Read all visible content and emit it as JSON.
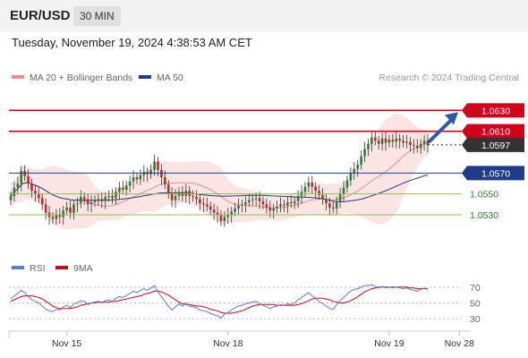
{
  "header": {
    "symbol": "EUR/USD",
    "timeframe": "30 MIN"
  },
  "timestamp": "Tuesday, November 19, 2024 4:38:53 AM CET",
  "legend": {
    "ma20": "MA 20 + Bollinger Bands",
    "ma50": "MA 50",
    "credit": "Research © 2024 Trading Central"
  },
  "rsi_legend": {
    "rsi": "RSI",
    "ma9": "9MA"
  },
  "colors": {
    "red": "#d0021b",
    "blue": "#1f3c88",
    "green": "#8bc34a",
    "bollinger_fill": "#fbe1e1",
    "ma20": "#f08c8c",
    "arrow": "#2e5ca8",
    "candle_up": "#2e7d32",
    "candle_down": "#c62828",
    "current": "#333333"
  },
  "chart_data": [
    {
      "type": "candlestick",
      "xlabel": "",
      "ylabel": "",
      "ylim": [
        1.05,
        1.065
      ],
      "x_ticks": [
        "Nov 15",
        "Nov 18",
        "Nov 19",
        "Nov 28"
      ],
      "x_tick_index": [
        16,
        62,
        108,
        128
      ],
      "close": [
        1.0548,
        1.0556,
        1.056,
        1.0572,
        1.0567,
        1.056,
        1.0553,
        1.055,
        1.0546,
        1.054,
        1.0532,
        1.0528,
        1.0526,
        1.053,
        1.0528,
        1.0534,
        1.0537,
        1.0532,
        1.054,
        1.0541,
        1.0547,
        1.0545,
        1.054,
        1.0542,
        1.0544,
        1.0545,
        1.0543,
        1.0547,
        1.0548,
        1.0546,
        1.0552,
        1.0556,
        1.0554,
        1.0558,
        1.0562,
        1.0566,
        1.0564,
        1.0568,
        1.0571,
        1.0569,
        1.0573,
        1.0581,
        1.0573,
        1.0566,
        1.0559,
        1.0551,
        1.0544,
        1.0548,
        1.0552,
        1.0548,
        1.0553,
        1.0548,
        1.0547,
        1.0545,
        1.0541,
        1.054,
        1.0538,
        1.0535,
        1.0532,
        1.053,
        1.0524,
        1.0528,
        1.053,
        1.0533,
        1.0536,
        1.0539,
        1.054,
        1.0542,
        1.0544,
        1.0545,
        1.0546,
        1.0543,
        1.054,
        1.0537,
        1.0534,
        1.0536,
        1.0538,
        1.054,
        1.0539,
        1.0542,
        1.0541,
        1.0543,
        1.0548,
        1.0552,
        1.0557,
        1.0561,
        1.0557,
        1.0553,
        1.0549,
        1.0545,
        1.0541,
        1.0537,
        1.0536,
        1.0543,
        1.055,
        1.0556,
        1.0563,
        1.057,
        1.0574,
        1.0578,
        1.0586,
        1.0593,
        1.0598,
        1.0604,
        1.0601,
        1.0598,
        1.0603,
        1.0599,
        1.0602,
        1.06,
        1.0603,
        1.0601,
        1.0599,
        1.06,
        1.0597,
        1.0596,
        1.0594,
        1.0598,
        1.0601,
        1.0597
      ],
      "ma20_last": 1.0585,
      "ma50_last": 1.057,
      "current_price": "1.0597",
      "levels": [
        {
          "value": 1.063,
          "label": "1.0630",
          "kind": "resistance"
        },
        {
          "value": 1.061,
          "label": "1.0610",
          "kind": "resistance"
        },
        {
          "value": 1.057,
          "label": "1.0570",
          "kind": "pivot"
        },
        {
          "value": 1.055,
          "label": "1.0550",
          "kind": "support"
        },
        {
          "value": 1.053,
          "label": "1.0530",
          "kind": "support"
        }
      ]
    },
    {
      "type": "line",
      "title": "",
      "ylim": [
        20,
        80
      ],
      "y_ticks": [
        "70",
        "50",
        "30"
      ],
      "series": [
        {
          "name": "RSI",
          "values": [
            55,
            59,
            62,
            66,
            63,
            58,
            54,
            52,
            50,
            46,
            42,
            40,
            39,
            42,
            41,
            45,
            47,
            44,
            49,
            50,
            53,
            52,
            48,
            50,
            51,
            52,
            50,
            53,
            54,
            52,
            56,
            58,
            57,
            59,
            62,
            65,
            63,
            66,
            68,
            66,
            69,
            72,
            64,
            58,
            52,
            46,
            41,
            45,
            49,
            46,
            50,
            46,
            45,
            44,
            41,
            40,
            39,
            37,
            35,
            34,
            31,
            36,
            38,
            41,
            44,
            46,
            47,
            49,
            50,
            51,
            52,
            49,
            47,
            45,
            43,
            45,
            46,
            48,
            47,
            49,
            48,
            50,
            54,
            57,
            60,
            63,
            59,
            56,
            52,
            49,
            46,
            43,
            42,
            48,
            53,
            57,
            61,
            65,
            67,
            68,
            70,
            72,
            72,
            73,
            71,
            69,
            71,
            69,
            70,
            69,
            70,
            69,
            68,
            69,
            67,
            66,
            65,
            67,
            69,
            67
          ]
        },
        {
          "name": "9MA",
          "values": [
            52,
            54,
            56,
            58,
            59,
            59,
            59,
            58,
            57,
            55,
            52,
            49,
            46,
            44,
            43,
            43,
            43,
            43,
            44,
            45,
            47,
            48,
            49,
            50,
            50,
            51,
            51,
            51,
            51,
            52,
            52,
            53,
            54,
            55,
            56,
            57,
            58,
            59,
            61,
            62,
            63,
            65,
            65,
            64,
            62,
            60,
            57,
            54,
            51,
            49,
            48,
            48,
            47,
            46,
            46,
            45,
            44,
            42,
            41,
            40,
            38,
            37,
            37,
            37,
            38,
            39,
            40,
            42,
            44,
            46,
            47,
            48,
            48,
            48,
            48,
            48,
            47,
            47,
            47,
            47,
            47,
            47,
            48,
            49,
            51,
            53,
            55,
            56,
            56,
            56,
            55,
            54,
            52,
            51,
            50,
            50,
            51,
            53,
            55,
            58,
            61,
            64,
            66,
            68,
            69,
            70,
            70,
            70,
            70,
            70,
            70,
            70,
            70,
            70,
            69,
            69,
            68,
            68,
            68,
            68
          ]
        }
      ]
    }
  ]
}
